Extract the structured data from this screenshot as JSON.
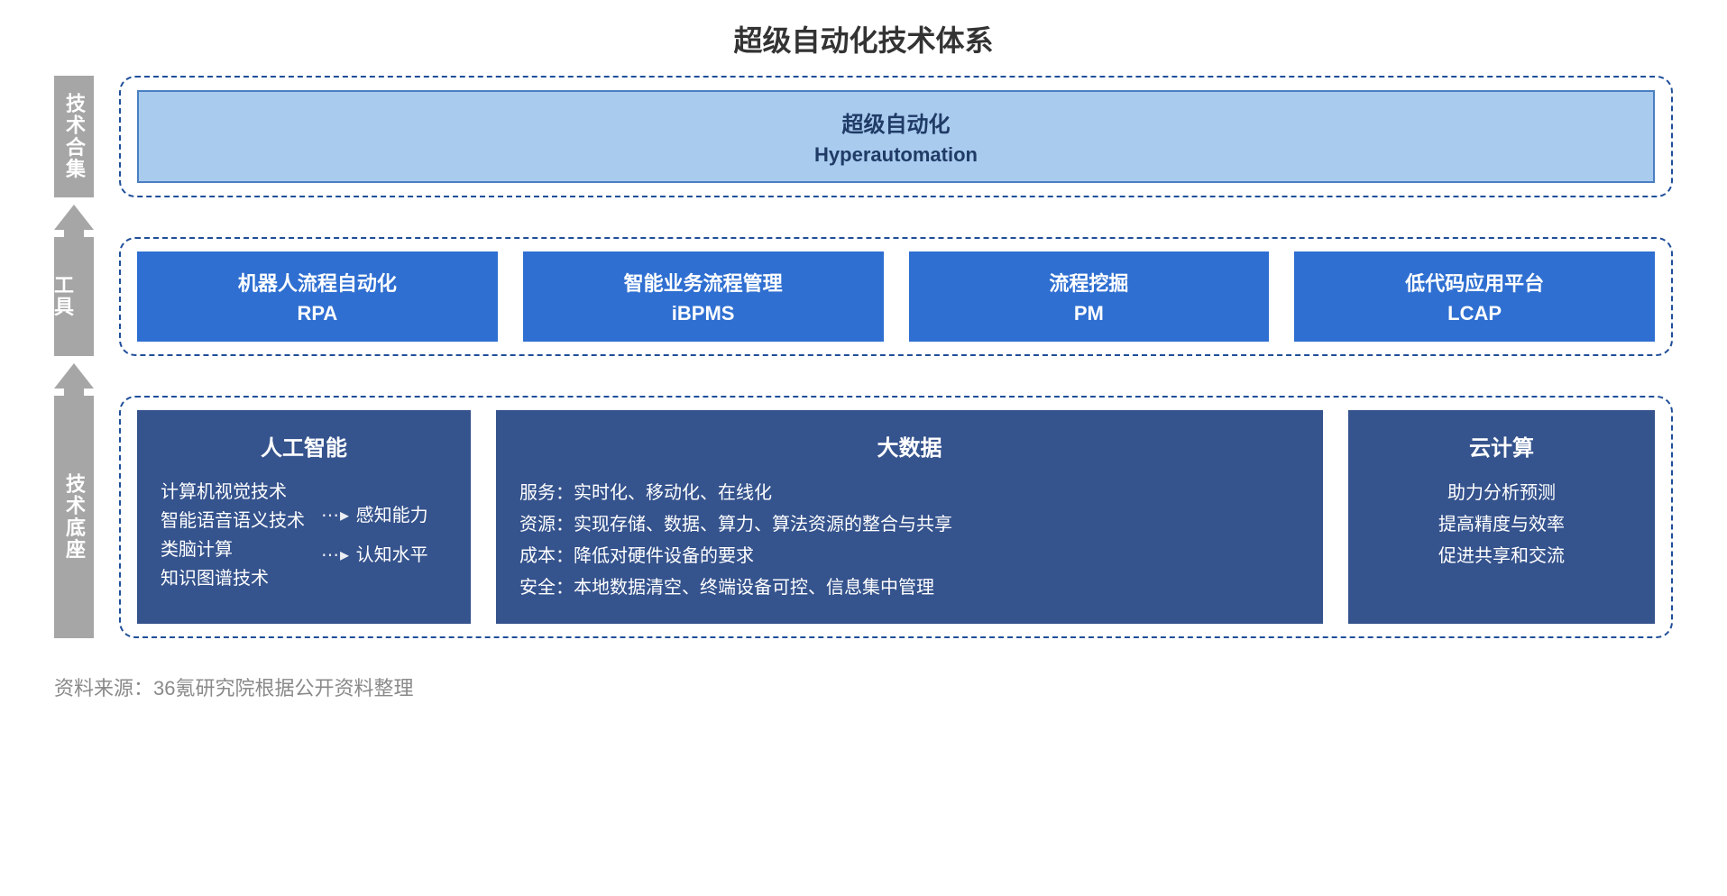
{
  "title": "超级自动化技术体系",
  "colors": {
    "title_text": "#333333",
    "vlabel_bg": "#a6a6a6",
    "vlabel_text": "#ffffff",
    "panel_border": "#1f4e99",
    "hyper_bg": "#a9cbee",
    "hyper_border": "#4a7fc1",
    "hyper_text": "#1f3b66",
    "tool_bg": "#2f6fd1",
    "tool_text": "#ffffff",
    "found_bg": "#35538d",
    "found_text": "#ffffff",
    "arrow": "#a6a6a6",
    "source_text": "#8a8a8a",
    "page_bg": "#ffffff"
  },
  "typography": {
    "title_fontsize": 32,
    "vlabel_fontsize": 22,
    "box_title_fontsize": 24,
    "box_sub_fontsize": 22,
    "body_fontsize": 20,
    "source_fontsize": 22,
    "font_family": "Microsoft YaHei"
  },
  "layout": {
    "panel_border_radius": 18,
    "panel_border_style": "dashed",
    "layer_gap": 28,
    "vlabel_width": 44
  },
  "layer1": {
    "vlabel": "技术合集",
    "box": {
      "cn": "超级自动化",
      "en": "Hyperautomation"
    }
  },
  "layer2": {
    "vlabel": "工具",
    "tools": [
      {
        "cn": "机器人流程自动化",
        "en": "RPA"
      },
      {
        "cn": "智能业务流程管理",
        "en": "iBPMS"
      },
      {
        "cn": "流程挖掘",
        "en": "PM"
      },
      {
        "cn": "低代码应用平台",
        "en": "LCAP"
      }
    ]
  },
  "layer3": {
    "vlabel": "技术底座",
    "ai": {
      "title": "人工智能",
      "left_items": [
        "计算机视觉技术",
        "智能语音语义技术",
        "类脑计算",
        "知识图谱技术"
      ],
      "right_items": [
        "感知能力",
        "认知水平"
      ]
    },
    "bigdata": {
      "title": "大数据",
      "lines": [
        "服务：实时化、移动化、在线化",
        "资源：实现存储、数据、算力、算法资源的整合与共享",
        "成本：降低对硬件设备的要求",
        "安全：本地数据清空、终端设备可控、信息集中管理"
      ]
    },
    "cloud": {
      "title": "云计算",
      "lines": [
        "助力分析预测",
        "提高精度与效率",
        "促进共享和交流"
      ]
    }
  },
  "source": "资料来源：36氪研究院根据公开资料整理"
}
